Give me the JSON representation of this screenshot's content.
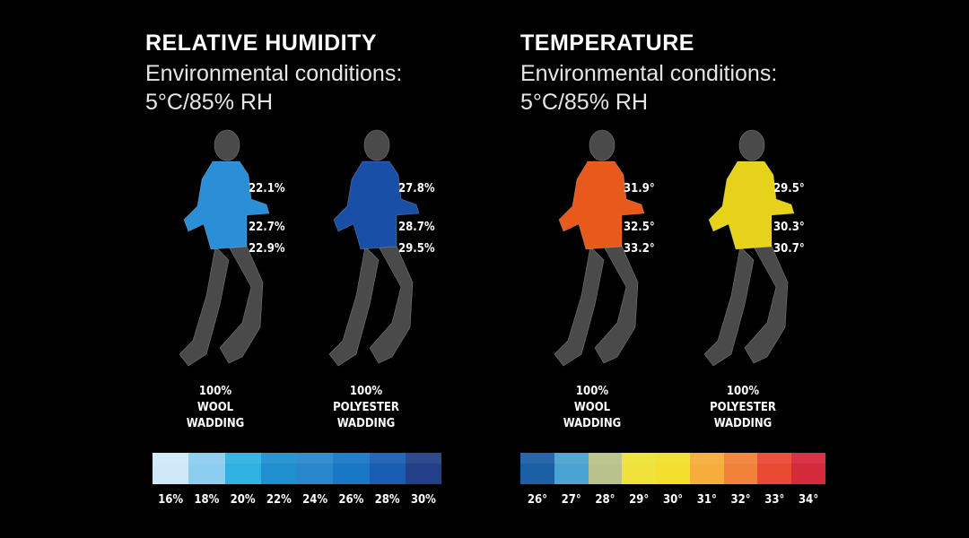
{
  "panels": [
    {
      "title": "RELATIVE HUMIDITY",
      "subtitle_line1": "Environmental conditions:",
      "subtitle_line2": "5°C/85% RH",
      "figures": [
        {
          "caption": [
            "100%",
            "WOOL",
            "WADDING"
          ],
          "values": [
            "22.1%",
            "22.7%",
            "22.9%"
          ],
          "jacket_color": "#2a8fd6"
        },
        {
          "caption": [
            "100%",
            "POLYESTER",
            "WADDING"
          ],
          "values": [
            "27.8%",
            "28.7%",
            "29.5%"
          ],
          "jacket_color": "#1a4fa8"
        }
      ],
      "scale": {
        "ticks": [
          "16%",
          "18%",
          "20%",
          "22%",
          "24%",
          "26%",
          "28%",
          "30%"
        ],
        "colors": [
          "#cfe9f8",
          "#8dcdef",
          "#2fb1e3",
          "#1f8fd0",
          "#2a86cc",
          "#1978c6",
          "#1a5eb4",
          "#243f8a"
        ]
      }
    },
    {
      "title": "TEMPERATURE",
      "subtitle_line1": "Environmental conditions:",
      "subtitle_line2": "5°C/85% RH",
      "figures": [
        {
          "caption": [
            "100%",
            "WOOL",
            "WADDING"
          ],
          "values": [
            "31.9°",
            "32.5°",
            "33.2°"
          ],
          "jacket_color": "#e8591c"
        },
        {
          "caption": [
            "100%",
            "POLYESTER",
            "WADDING"
          ],
          "values": [
            "29.5°",
            "30.3°",
            "30.7°"
          ],
          "jacket_color": "#e6d21a"
        }
      ],
      "scale": {
        "ticks": [
          "26°",
          "27°",
          "28°",
          "29°",
          "30°",
          "31°",
          "32°",
          "33°",
          "34°"
        ],
        "colors": [
          "#1b5fa5",
          "#4aa3d2",
          "#b9c28a",
          "#f0e23a",
          "#f4df2e",
          "#f6ad3c",
          "#f0823a",
          "#e94a34",
          "#d42a3c"
        ]
      }
    }
  ]
}
